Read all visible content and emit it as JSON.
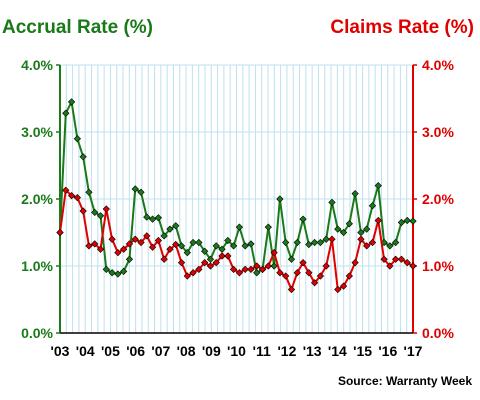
{
  "chart_data": {
    "type": "line",
    "left_axis_title": "Accrual Rate (%)",
    "right_axis_title": "Claims Rate (%)",
    "source": "Source: Warranty Week",
    "y_ticks": [
      "0.0%",
      "1.0%",
      "2.0%",
      "3.0%",
      "4.0%"
    ],
    "ylim": [
      0,
      4
    ],
    "x_ticks": [
      "'03",
      "'04",
      "'05",
      "'06",
      "'07",
      "'08",
      "'09",
      "'10",
      "'11",
      "'12",
      "'13",
      "'14",
      "'15",
      "'16",
      "'17"
    ],
    "grid": true,
    "colors": {
      "accrual": "#1a7a1a",
      "claims": "#e00000",
      "grid": "#bfe0ee",
      "axis": "#000000"
    },
    "series": [
      {
        "key": "accrual",
        "values": [
          1.5,
          3.28,
          3.45,
          2.9,
          2.63,
          2.1,
          1.8,
          1.75,
          0.95,
          0.9,
          0.88,
          0.92,
          1.1,
          2.15,
          2.1,
          1.73,
          1.7,
          1.72,
          1.45,
          1.55,
          1.6,
          1.3,
          1.2,
          1.35,
          1.35,
          1.22,
          1.1,
          1.3,
          1.25,
          1.38,
          1.3,
          1.58,
          1.3,
          1.33,
          0.9,
          0.95,
          1.58,
          1.0,
          2.0,
          1.35,
          1.1,
          1.35,
          1.7,
          1.32,
          1.35,
          1.35,
          1.4,
          1.95,
          1.55,
          1.5,
          1.63,
          2.08,
          1.5,
          1.55,
          1.9,
          2.2,
          1.35,
          1.3,
          1.35,
          1.65,
          1.68,
          1.67
        ]
      },
      {
        "key": "claims",
        "values": [
          1.5,
          2.13,
          2.05,
          2.02,
          1.82,
          1.3,
          1.33,
          1.25,
          1.85,
          1.4,
          1.2,
          1.25,
          1.33,
          1.4,
          1.35,
          1.45,
          1.28,
          1.38,
          1.1,
          1.25,
          1.32,
          1.05,
          0.85,
          0.9,
          0.95,
          1.05,
          1.0,
          1.05,
          1.15,
          1.15,
          0.95,
          0.9,
          0.95,
          0.95,
          1.0,
          0.95,
          1.0,
          1.2,
          0.9,
          0.85,
          0.65,
          0.9,
          1.05,
          0.9,
          0.75,
          0.85,
          1.0,
          1.4,
          0.65,
          0.7,
          0.85,
          1.05,
          1.4,
          1.3,
          1.35,
          1.68,
          1.1,
          1.0,
          1.1,
          1.1,
          1.05,
          1.0
        ]
      }
    ]
  }
}
